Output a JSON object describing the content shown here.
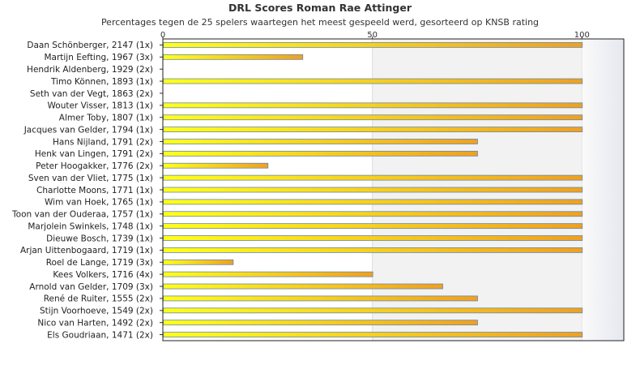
{
  "chart_data": {
    "type": "bar",
    "orientation": "horizontal",
    "title": "DRL Scores Roman Rae Attinger",
    "subtitle": "Percentages tegen de 25 spelers waartegen het meest gespeeld werd, gesorteerd op KNSB rating",
    "x_ticks": [
      0,
      50,
      100
    ],
    "xlim": [
      0,
      110
    ],
    "categories": [
      "Daan Schönberger, 2147 (1x)",
      "Martijn Eefting, 1967 (3x)",
      "Hendrik Aldenberg, 1929 (2x)",
      "Timo Können, 1893 (1x)",
      "Seth van der Vegt, 1863 (2x)",
      "Wouter Visser, 1813 (1x)",
      "Almer Toby, 1807 (1x)",
      "Jacques van Gelder, 1794 (1x)",
      "Hans Nijland, 1791 (2x)",
      "Henk van Lingen, 1791 (2x)",
      "Peter Hoogakker, 1776 (2x)",
      "Sven van der Vliet, 1775 (1x)",
      "Charlotte Moons, 1771 (1x)",
      "Wim van Hoek, 1765 (1x)",
      "Toon van der Ouderaa, 1757 (1x)",
      "Marjolein Swinkels, 1748 (1x)",
      "Dieuwe Bosch, 1739 (1x)",
      "Arjan Uittenbogaard, 1719 (1x)",
      "Roel de Lange, 1719 (3x)",
      "Kees Volkers, 1716 (4x)",
      "Arnold van Gelder, 1709 (3x)",
      "René de Ruiter, 1555 (2x)",
      "Stijn Voorhoeve, 1549 (2x)",
      "Nico van Harten, 1492 (2x)",
      "Els Goudriaan, 1471 (2x)"
    ],
    "values": [
      100,
      33.3,
      0,
      100,
      0,
      100,
      100,
      100,
      75,
      75,
      25,
      100,
      100,
      100,
      100,
      100,
      100,
      100,
      16.7,
      50,
      66.7,
      75,
      100,
      75,
      100
    ],
    "colors": {
      "bar_left": "#ffff1a",
      "bar_right": "#f0a020",
      "bar_border": "#6688aa",
      "band": "#f2f2f2",
      "axis": "#222222"
    }
  }
}
